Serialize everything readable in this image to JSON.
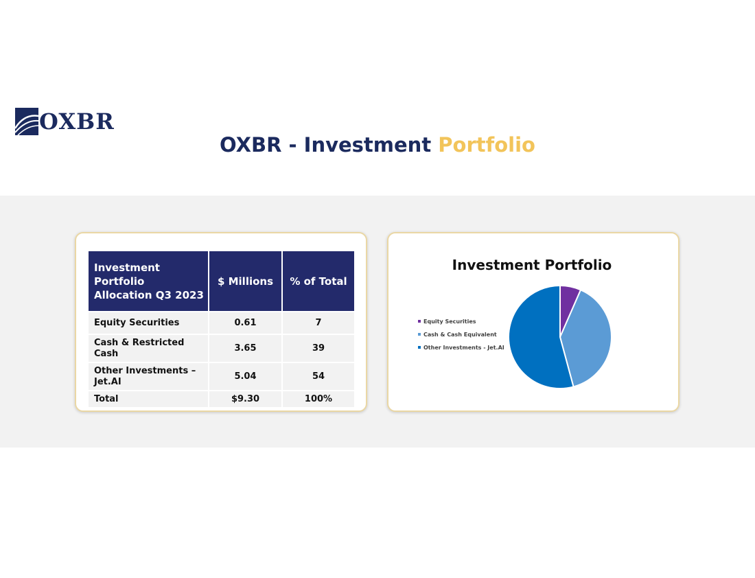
{
  "header": {
    "logo_text": "OXBR",
    "title_main": "OXBR - Investment",
    "title_accent": "Portfolio"
  },
  "colors": {
    "navy": "#1b2a5e",
    "gold_accent": "#f2c45a",
    "table_header": "#232a6b",
    "equity": "#7030a0",
    "cash": "#5b9bd5",
    "other": "#0070c0"
  },
  "table": {
    "headers": [
      "Investment Portfolio Allocation Q3 2023",
      "$ Millions",
      "% of Total"
    ],
    "rows": [
      {
        "label": "Equity Securities",
        "millions": "0.61",
        "pct": "7"
      },
      {
        "label": "Cash & Restricted Cash",
        "millions": "3.65",
        "pct": "39"
      },
      {
        "label": "Other Investments – Jet.AI",
        "millions": "5.04",
        "pct": "54"
      },
      {
        "label": "Total",
        "millions": "$9.30",
        "pct": "100%"
      }
    ]
  },
  "chart_data": {
    "type": "pie",
    "title": "Investment Portfolio",
    "categories": [
      "Equity Securities",
      "Cash & Cash Equivalent",
      "Other Investments - Jet.AI"
    ],
    "values": [
      0.61,
      3.65,
      5.04
    ],
    "colors": [
      "#7030a0",
      "#5b9bd5",
      "#0070c0"
    ],
    "legend_position": "left"
  }
}
